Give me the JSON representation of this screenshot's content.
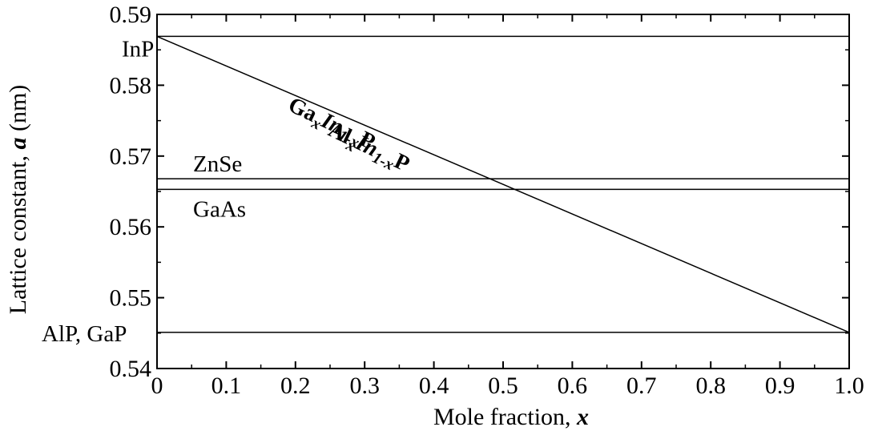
{
  "chart_data": {
    "type": "line",
    "title": "",
    "xlabel": {
      "text": "Mole fraction, ",
      "var": "x"
    },
    "ylabel": {
      "text_before": "Lattice constant, ",
      "var": "a",
      "text_after": " (nm)"
    },
    "xlim": [
      0,
      1.0
    ],
    "ylim": [
      0.54,
      0.59
    ],
    "x_ticks": [
      0,
      0.1,
      0.2,
      0.3,
      0.4,
      0.5,
      0.6,
      0.7,
      0.8,
      0.9,
      1.0
    ],
    "x_tick_labels": [
      "0",
      "0.1",
      "0.2",
      "0.3",
      "0.4",
      "0.5",
      "0.6",
      "0.7",
      "0.8",
      "0.9",
      "1.0"
    ],
    "y_ticks": [
      0.54,
      0.55,
      0.56,
      0.57,
      0.58,
      0.59
    ],
    "y_tick_labels": [
      "0.54",
      "0.55",
      "0.56",
      "0.57",
      "0.58",
      "0.59"
    ],
    "grid": false,
    "legend": "none",
    "horizontal_lines": [
      {
        "name": "InP",
        "y": 0.5869
      },
      {
        "name": "ZnSe",
        "y": 0.5668
      },
      {
        "name": "GaAs",
        "y": 0.5653
      },
      {
        "name": "AlP, GaP",
        "y": 0.5451
      }
    ],
    "series": [
      {
        "name": "GaxIn1-xP / AlxIn1-xP",
        "x": [
          0,
          1.0
        ],
        "y": [
          0.5869,
          0.5451
        ]
      }
    ],
    "curve_labels": [
      {
        "base1": "Ga",
        "sub1": "x",
        "base2": "In",
        "sub2": "1-x",
        "base3": "P"
      },
      {
        "base1": "Al",
        "sub1": "x",
        "base2": "In",
        "sub2": "1-x",
        "base3": "P"
      }
    ]
  }
}
